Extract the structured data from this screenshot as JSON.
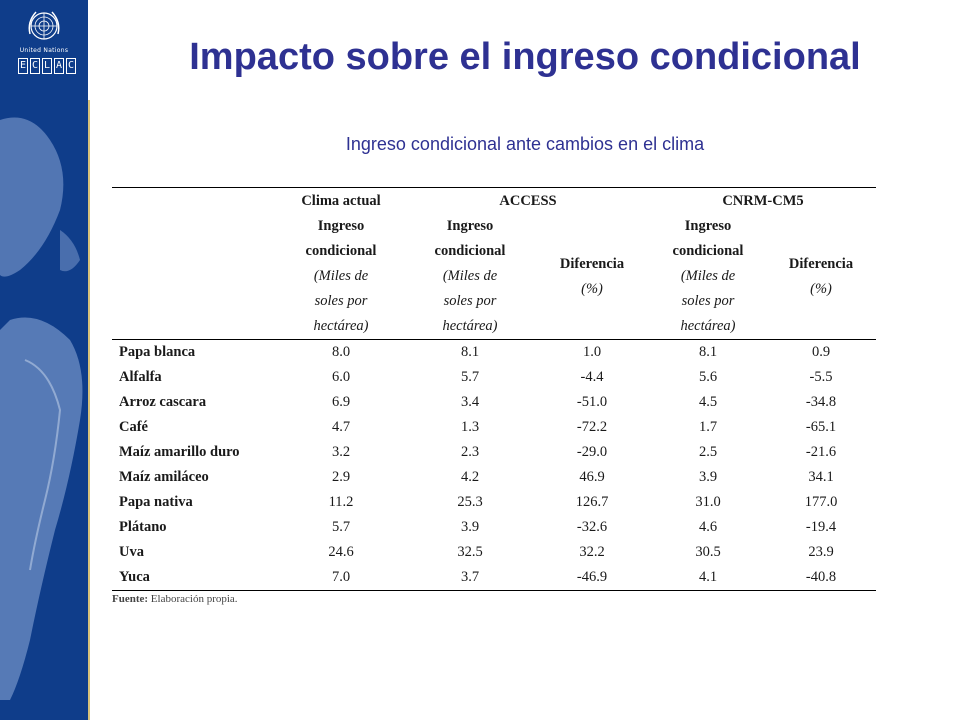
{
  "brand": {
    "un_label": "United Nations",
    "eclac_letters": [
      "E",
      "C",
      "L",
      "A",
      "C"
    ],
    "colors": {
      "sidebar": "#0f3d8a",
      "title": "#2e3192",
      "accent": "#d8c27a"
    }
  },
  "title": "Impacto sobre el ingreso condicional",
  "subtitle": "Ingreso condicional ante cambios en el clima",
  "table": {
    "groups": {
      "g1": "Clima actual",
      "g2": "ACCESS",
      "g3": "CNRM-CM5"
    },
    "col_ingreso": {
      "l1": "Ingreso",
      "l2": "condicional",
      "l3": "(Miles de",
      "l4": "soles por",
      "l5": "hectárea)"
    },
    "col_diferencia": {
      "l1": "Diferencia",
      "l2": "(%)"
    },
    "rows": [
      [
        "Papa blanca",
        "8.0",
        "8.1",
        "1.0",
        "8.1",
        "0.9"
      ],
      [
        "Alfalfa",
        "6.0",
        "5.7",
        "-4.4",
        "5.6",
        "-5.5"
      ],
      [
        "Arroz cascara",
        "6.9",
        "3.4",
        "-51.0",
        "4.5",
        "-34.8"
      ],
      [
        "Café",
        "4.7",
        "1.3",
        "-72.2",
        "1.7",
        "-65.1"
      ],
      [
        "Maíz amarillo duro",
        "3.2",
        "2.3",
        "-29.0",
        "2.5",
        "-21.6"
      ],
      [
        "Maíz amiláceo",
        "2.9",
        "4.2",
        "46.9",
        "3.9",
        "34.1"
      ],
      [
        "Papa nativa",
        "11.2",
        "25.3",
        "126.7",
        "31.0",
        "177.0"
      ],
      [
        "Plátano",
        "5.7",
        "3.9",
        "-32.6",
        "4.6",
        "-19.4"
      ],
      [
        "Uva",
        "24.6",
        "32.5",
        "32.2",
        "30.5",
        "23.9"
      ],
      [
        "Yuca",
        "7.0",
        "3.7",
        "-46.9",
        "4.1",
        "-40.8"
      ]
    ]
  },
  "source": {
    "label": "Fuente:",
    "text": " Elaboración propia."
  }
}
